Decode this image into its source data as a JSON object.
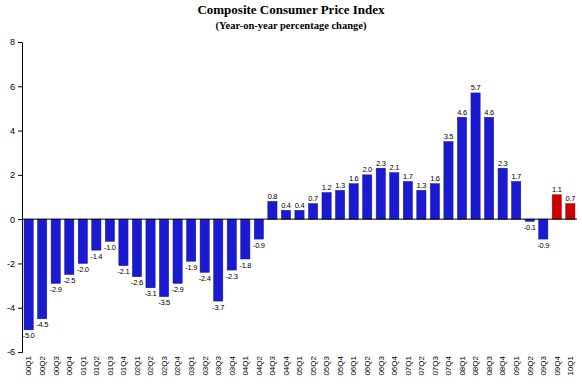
{
  "chart_data": {
    "type": "bar",
    "title": "Composite Consumer Price Index",
    "subtitle": "(Year-on-year percentage change)",
    "categories": [
      "00Q1",
      "00Q2",
      "00Q3",
      "00Q4",
      "01Q1",
      "01Q2",
      "01Q3",
      "01Q4",
      "02Q1",
      "02Q2",
      "02Q3",
      "02Q4",
      "03Q1",
      "03Q2",
      "03Q3",
      "03Q4",
      "04Q1",
      "04Q2",
      "04Q3",
      "04Q4",
      "05Q1",
      "05Q2",
      "05Q3",
      "05Q4",
      "06Q1",
      "06Q2",
      "06Q3",
      "06Q4",
      "07Q1",
      "07Q2",
      "07Q3",
      "07Q4",
      "08Q1",
      "08Q2",
      "08Q3",
      "08Q4",
      "09Q1",
      "09Q2",
      "09Q3",
      "09Q4",
      "10Q1"
    ],
    "values": [
      -5.0,
      -4.5,
      -2.9,
      -2.5,
      -2.0,
      -1.4,
      -1.0,
      -2.1,
      -2.6,
      -3.1,
      -3.5,
      -2.9,
      -1.9,
      -2.4,
      -3.7,
      -2.3,
      -1.8,
      -0.9,
      0.8,
      0.4,
      0.4,
      0.7,
      1.2,
      1.3,
      1.6,
      2.0,
      2.3,
      2.1,
      1.7,
      1.3,
      1.6,
      3.5,
      4.6,
      5.7,
      4.6,
      2.3,
      1.7,
      -0.1,
      -0.9,
      1.1,
      0.7
    ],
    "value_labels": [
      "-5.0",
      "-4.5",
      "-2.9",
      "-2.5",
      "-2.0",
      "-1.4",
      "-1.0",
      "-2.1",
      "-2.6",
      "-3.1",
      "-3.5",
      "-2.9",
      "-1.9",
      "-2.4",
      "-3.7",
      "-2.3",
      "-1.8",
      "-0.9",
      "0.8",
      "0.4",
      "0.4",
      "0.7",
      "1.2",
      "1.3",
      "1.6",
      "2.0",
      "2.3",
      "2.1",
      "1.7",
      "1.3",
      "1.6",
      "3.5",
      "4.6",
      "5.7",
      "4.6",
      "2.3",
      "1.7",
      "-0.1",
      "-0.9",
      "1.1",
      "0.7"
    ],
    "colors": [
      "#1a1ad0",
      "#1a1ad0",
      "#1a1ad0",
      "#1a1ad0",
      "#1a1ad0",
      "#1a1ad0",
      "#1a1ad0",
      "#1a1ad0",
      "#1a1ad0",
      "#1a1ad0",
      "#1a1ad0",
      "#1a1ad0",
      "#1a1ad0",
      "#1a1ad0",
      "#1a1ad0",
      "#1a1ad0",
      "#1a1ad0",
      "#1a1ad0",
      "#1a1ad0",
      "#1a1ad0",
      "#1a1ad0",
      "#1a1ad0",
      "#1a1ad0",
      "#1a1ad0",
      "#1a1ad0",
      "#1a1ad0",
      "#1a1ad0",
      "#1a1ad0",
      "#1a1ad0",
      "#1a1ad0",
      "#1a1ad0",
      "#1a1ad0",
      "#1a1ad0",
      "#1a1ad0",
      "#1a1ad0",
      "#1a1ad0",
      "#1a1ad0",
      "#1a1ad0",
      "#1a1ad0",
      "#cc0000",
      "#cc0000"
    ],
    "ylim": [
      -6,
      8
    ],
    "yticks": [
      -6,
      -4,
      -2,
      0,
      2,
      4,
      6,
      8
    ],
    "grid": false,
    "data_labels": true
  }
}
